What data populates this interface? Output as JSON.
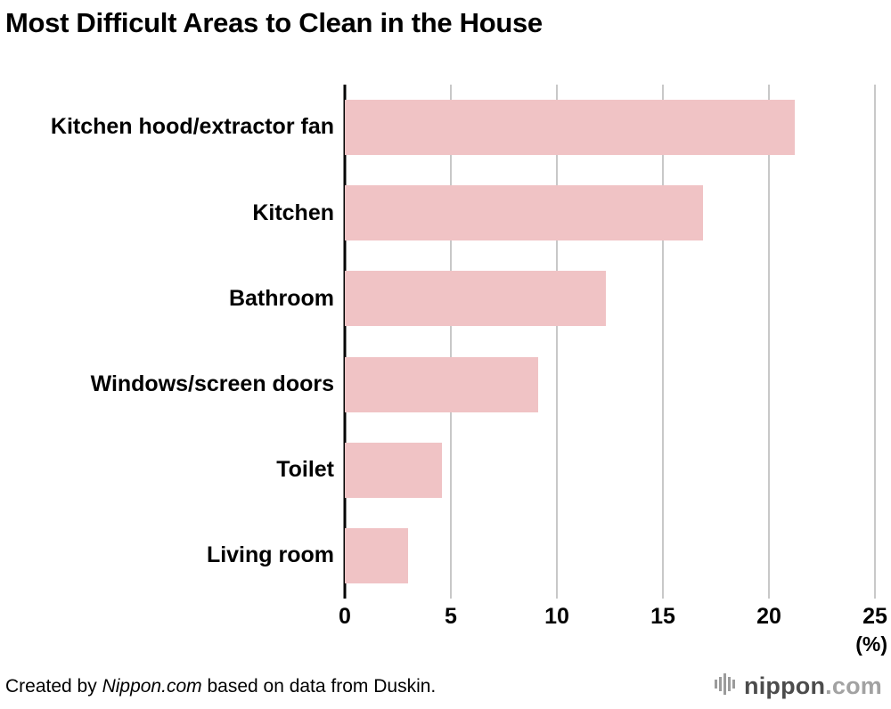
{
  "title": "Most Difficult Areas to Clean in the House",
  "chart_data": {
    "type": "bar",
    "orientation": "horizontal",
    "title": "Most Difficult Areas to Clean in the House",
    "categories": [
      "Kitchen hood/extractor fan",
      "Kitchen",
      "Bathroom",
      "Windows/screen doors",
      "Toilet",
      "Living room"
    ],
    "values": [
      21.2,
      16.9,
      12.3,
      9.1,
      4.6,
      3.0
    ],
    "xlim": [
      0,
      25
    ],
    "xticks": [
      0,
      5,
      10,
      15,
      20,
      25
    ],
    "unit_label": "(%)",
    "grid": true,
    "bar_color": "#f0c3c5",
    "grid_color": "#c8c8c8",
    "axis_color": "#000000"
  },
  "footer": {
    "credit_prefix": "Created by ",
    "credit_source": "Nippon.com",
    "credit_suffix": " based on data from Duskin.",
    "logo_name": "nippon",
    "logo_suffix": ".com"
  }
}
